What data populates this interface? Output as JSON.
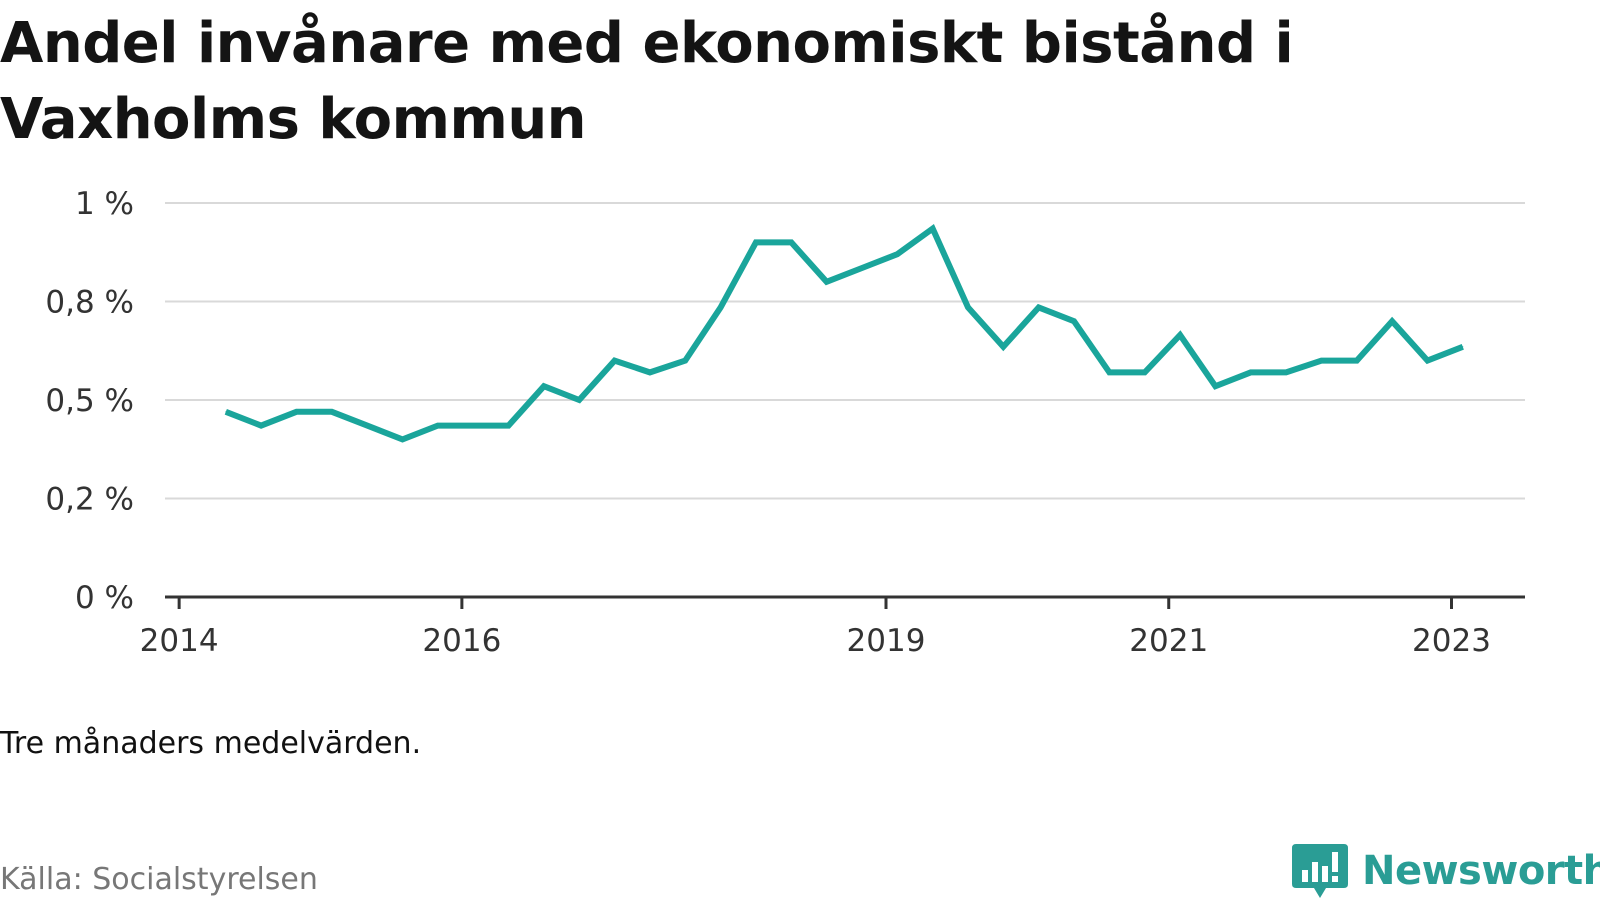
{
  "title": "Andel invånare med ekonomiskt bistånd i Vaxholms kommun",
  "note": "Tre månaders medelvärden.",
  "source": "Källa: Socialstyrelsen",
  "brand": {
    "name": "Newsworthy",
    "color": "#2a9d95"
  },
  "chart_data": {
    "type": "line",
    "title": "Andel invånare med ekonomiskt bistånd i Vaxholms kommun",
    "xlabel": "",
    "ylabel": "",
    "ylim": [
      0,
      1
    ],
    "y_ticks": [
      {
        "value": 0,
        "label": "0 %"
      },
      {
        "value": 0.25,
        "label": "0,2 %"
      },
      {
        "value": 0.5,
        "label": "0,5 %"
      },
      {
        "value": 0.75,
        "label": "0,8 %"
      },
      {
        "value": 1,
        "label": "1 %"
      }
    ],
    "x_ticks": [
      {
        "value": 2014.0,
        "label": "2014"
      },
      {
        "value": 2016.0,
        "label": "2016"
      },
      {
        "value": 2019.0,
        "label": "2019"
      },
      {
        "value": 2021.0,
        "label": "2021"
      },
      {
        "value": 2023.0,
        "label": "2023"
      }
    ],
    "xlim": [
      2013.9,
      2023.52
    ],
    "grid": true,
    "line_color": "#1aa59b",
    "series": [
      {
        "x": [
          2014.33,
          2014.58,
          2014.83,
          2015.08,
          2015.33,
          2015.58,
          2015.83,
          2016.08,
          2016.33,
          2016.58,
          2016.83,
          2017.08,
          2017.33,
          2017.58,
          2017.83,
          2018.08,
          2018.33,
          2018.58,
          2018.83,
          2019.08,
          2019.33,
          2019.58,
          2019.83,
          2020.08,
          2020.33,
          2020.58,
          2020.83,
          2021.08,
          2021.33,
          2021.58,
          2021.83,
          2022.08,
          2022.33,
          2022.58,
          2022.83,
          2023.08
        ],
        "values": [
          0.47,
          0.435,
          0.47,
          0.47,
          0.435,
          0.4,
          0.435,
          0.435,
          0.435,
          0.535,
          0.5,
          0.6,
          0.57,
          0.6,
          0.735,
          0.9,
          0.9,
          0.8,
          0.835,
          0.87,
          0.935,
          0.735,
          0.635,
          0.735,
          0.7,
          0.57,
          0.57,
          0.665,
          0.535,
          0.57,
          0.57,
          0.6,
          0.6,
          0.7,
          0.6,
          0.635
        ]
      }
    ]
  }
}
